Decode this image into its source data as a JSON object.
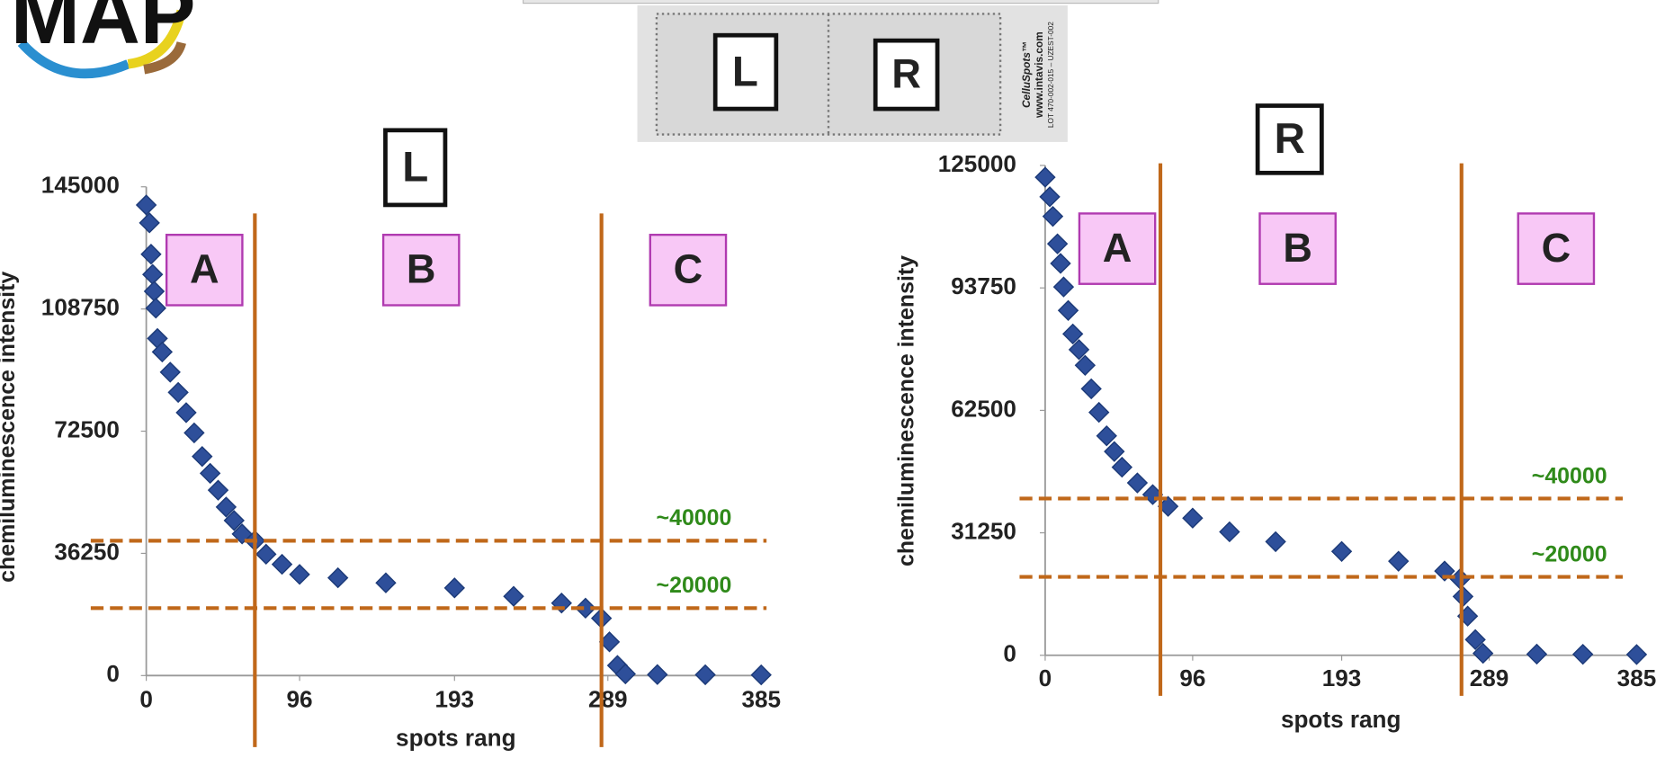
{
  "logo": "MAP",
  "membrane": {
    "labels": [
      "L",
      "R"
    ],
    "brand": "CelluSpots™",
    "url": "www.intavis.com",
    "lot": "LOT 470-002-015 – UZEST-002"
  },
  "chart_data": [
    {
      "type": "scatter",
      "title": "L",
      "x_label": "spots rang",
      "y_label": "chemiluminescence intensity",
      "xlim": [
        0,
        385
      ],
      "xticks": [
        0,
        96,
        193,
        289,
        385
      ],
      "ylim": [
        0,
        145000
      ],
      "yticks": [
        0,
        36250,
        72500,
        108750,
        145000
      ],
      "zones": [
        "A",
        "B",
        "C"
      ],
      "dividers": [
        68,
        285
      ],
      "thresholds": [
        {
          "value": 40000,
          "label": "~40000"
        },
        {
          "value": 20000,
          "label": "~20000"
        }
      ],
      "series": [
        {
          "color": "#2e4f9a",
          "x": [
            0,
            2,
            3,
            4,
            5,
            6,
            7,
            10,
            15,
            20,
            25,
            30,
            35,
            40,
            45,
            50,
            55,
            60,
            68,
            75,
            85,
            96,
            120,
            150,
            193,
            230,
            260,
            275,
            285,
            290,
            295,
            300,
            320,
            350,
            385
          ],
          "values": [
            139600,
            134300,
            125000,
            119000,
            114000,
            109000,
            100000,
            96000,
            90000,
            84000,
            78000,
            72000,
            65000,
            60000,
            55000,
            50000,
            46000,
            42000,
            40000,
            36000,
            33000,
            30000,
            29000,
            27500,
            26000,
            23500,
            21500,
            20000,
            17000,
            10000,
            3000,
            500,
            300,
            250,
            200
          ]
        }
      ]
    },
    {
      "type": "scatter",
      "title": "R",
      "x_label": "spots rang",
      "y_label": "chemiluminescence intensity",
      "xlim": [
        0,
        385
      ],
      "xticks": [
        0,
        96,
        193,
        289,
        385
      ],
      "ylim": [
        0,
        125000
      ],
      "yticks": [
        0,
        31250,
        62500,
        93750,
        125000
      ],
      "zones": [
        "A",
        "B",
        "C"
      ],
      "dividers": [
        75,
        271
      ],
      "thresholds": [
        {
          "value": 40000,
          "label": "~40000"
        },
        {
          "value": 20000,
          "label": "~20000"
        }
      ],
      "series": [
        {
          "color": "#2e4f9a",
          "x": [
            0,
            3,
            5,
            8,
            10,
            12,
            15,
            18,
            22,
            26,
            30,
            35,
            40,
            45,
            50,
            60,
            70,
            80,
            96,
            120,
            150,
            193,
            230,
            260,
            270,
            272,
            275,
            280,
            285,
            320,
            350,
            385
          ],
          "values": [
            122000,
            117000,
            112000,
            105000,
            100000,
            94000,
            88000,
            82000,
            78000,
            74000,
            68000,
            62000,
            56000,
            52000,
            48000,
            44000,
            41000,
            38000,
            35000,
            31500,
            29000,
            26500,
            24000,
            21500,
            19500,
            15000,
            10000,
            4000,
            500,
            300,
            250,
            200
          ]
        }
      ]
    }
  ]
}
